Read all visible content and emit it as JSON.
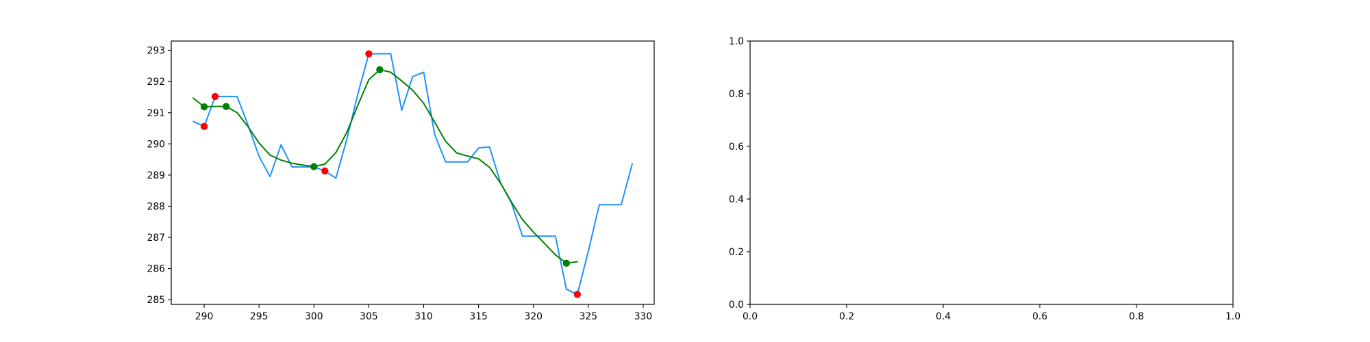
{
  "chart_data": [
    {
      "type": "line",
      "title": "",
      "xlabel": "",
      "ylabel": "",
      "xlim": [
        287,
        331
      ],
      "ylim": [
        284.85,
        293.3
      ],
      "xticks": [
        290,
        295,
        300,
        305,
        310,
        315,
        320,
        325,
        330
      ],
      "yticks": [
        285,
        286,
        287,
        288,
        289,
        290,
        291,
        292,
        293
      ],
      "grid": false,
      "series": [
        {
          "kind": "line",
          "color": "#1e90ff",
          "x": [
            289,
            290,
            291,
            292,
            293,
            294,
            295,
            296,
            297,
            298,
            299,
            300,
            301,
            302,
            303,
            304,
            305,
            306,
            307,
            308,
            309,
            310,
            311,
            312,
            313,
            314,
            315,
            316,
            317,
            318,
            319,
            320,
            321,
            322,
            323,
            324,
            325,
            326,
            327,
            328,
            329
          ],
          "y": [
            290.72,
            290.56,
            291.52,
            291.52,
            291.52,
            290.6,
            289.6,
            288.95,
            289.97,
            289.26,
            289.26,
            289.26,
            289.13,
            288.9,
            290.15,
            291.6,
            292.89,
            292.89,
            292.89,
            291.08,
            292.16,
            292.3,
            290.3,
            289.42,
            289.42,
            289.42,
            289.87,
            289.9,
            288.75,
            288.1,
            287.04,
            287.04,
            287.04,
            287.04,
            285.34,
            285.17,
            286.55,
            288.05,
            288.05,
            288.05,
            289.36
          ]
        },
        {
          "kind": "line",
          "color": "#008000",
          "x": [
            289,
            290,
            291,
            292,
            293,
            294,
            295,
            296,
            297,
            298,
            299,
            300,
            301,
            302,
            303,
            304,
            305,
            306,
            307,
            308,
            309,
            310,
            311,
            312,
            313,
            314,
            315,
            316,
            317,
            318,
            319,
            320,
            321,
            322,
            323,
            324
          ],
          "y": [
            291.47,
            291.19,
            291.2,
            291.2,
            291.0,
            290.55,
            290.03,
            289.64,
            289.48,
            289.38,
            289.32,
            289.27,
            289.35,
            289.72,
            290.37,
            291.24,
            292.06,
            292.38,
            292.3,
            292.02,
            291.72,
            291.3,
            290.7,
            290.08,
            289.71,
            289.61,
            289.52,
            289.25,
            288.74,
            288.13,
            287.57,
            287.17,
            286.81,
            286.44,
            286.17,
            286.22
          ]
        },
        {
          "kind": "scatter",
          "color": "#ff0000",
          "x": [
            290,
            291,
            301,
            305,
            324
          ],
          "y": [
            290.56,
            291.52,
            289.13,
            292.89,
            285.17
          ]
        },
        {
          "kind": "scatter",
          "color": "#008000",
          "x": [
            290,
            292,
            300,
            306,
            323
          ],
          "y": [
            291.19,
            291.2,
            289.27,
            292.38,
            286.17
          ]
        }
      ]
    },
    {
      "type": "line",
      "title": "",
      "xlabel": "",
      "ylabel": "",
      "xlim": [
        0,
        1
      ],
      "ylim": [
        0,
        1
      ],
      "xticks": [
        0.0,
        0.2,
        0.4,
        0.6,
        0.8,
        1.0
      ],
      "yticks": [
        0.0,
        0.2,
        0.4,
        0.6,
        0.8,
        1.0
      ],
      "grid": false,
      "series": []
    }
  ]
}
